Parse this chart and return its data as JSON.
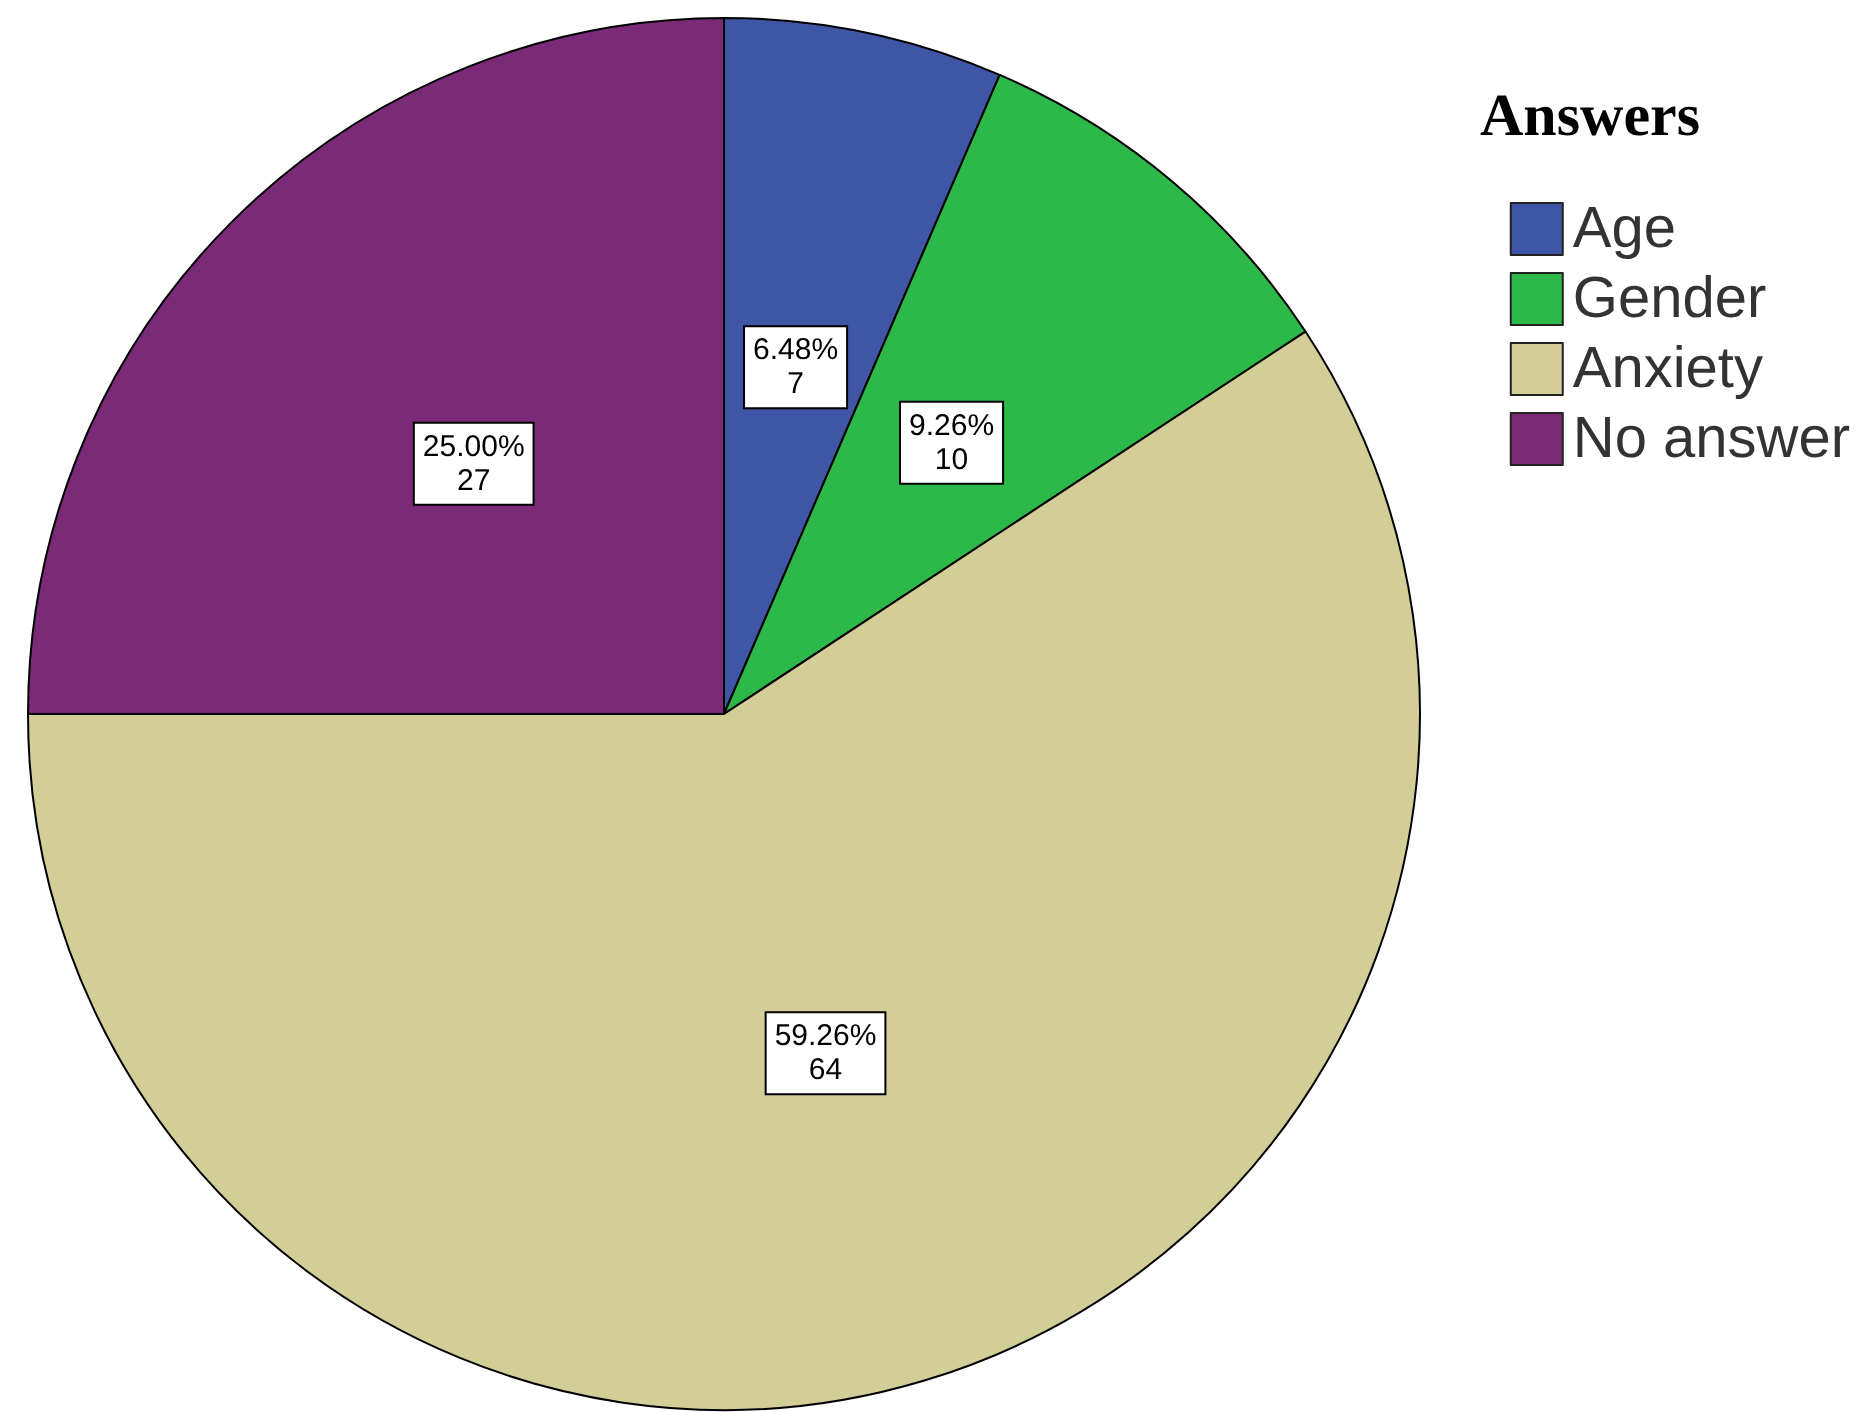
{
  "chart_data": {
    "type": "pie",
    "legend_title": "Answers",
    "legend": "top right",
    "categories": [
      "Age",
      "Gender",
      "Anxiety",
      "No answer"
    ],
    "values": [
      7,
      10,
      64,
      27
    ],
    "colors": [
      "#3f56a6",
      "#2db84a",
      "#d3cd98",
      "#7a2a77"
    ],
    "value_labels": [
      "6.48%\n7",
      "9.26%\n10",
      "59.26%\n64",
      "25.00%\n27"
    ]
  }
}
